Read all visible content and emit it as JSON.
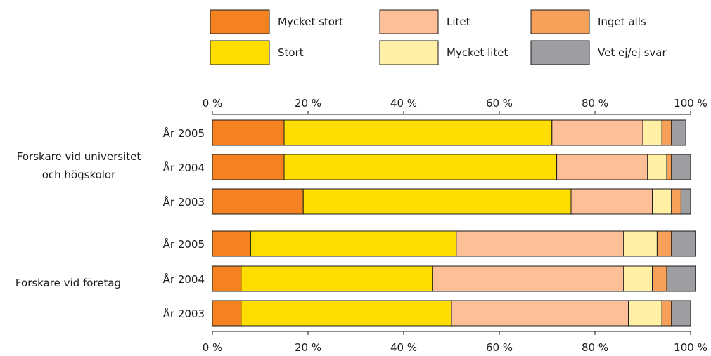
{
  "chart_data": {
    "type": "bar",
    "stacked": true,
    "orientation": "horizontal",
    "title": "",
    "xlabel": "",
    "ylabel": "",
    "xlim": [
      0,
      100
    ],
    "x_ticks": [
      "0 %",
      "20 %",
      "40 %",
      "60 %",
      "80 %",
      "100 %"
    ],
    "tick_values": [
      0,
      20,
      40,
      60,
      80,
      100
    ],
    "legend_position": "top",
    "groups": [
      {
        "lines": [
          "Forskare vid universitet",
          "och högskolor"
        ],
        "categories": [
          "År 2005",
          "År 2004",
          "År 2003"
        ]
      },
      {
        "lines": [
          "Forskare vid företag"
        ],
        "categories": [
          "År 2005",
          "År 2004",
          "År 2003"
        ]
      }
    ],
    "series": [
      {
        "name": "Mycket stort",
        "color": "#f58220",
        "values": [
          15,
          15,
          19,
          8,
          6,
          6
        ]
      },
      {
        "name": "Stort",
        "color": "#ffdd00",
        "values": [
          56,
          57,
          56,
          43,
          40,
          44
        ]
      },
      {
        "name": "Litet",
        "color": "#fdbf98",
        "values": [
          19,
          19,
          17,
          35,
          40,
          37
        ]
      },
      {
        "name": "Mycket litet",
        "color": "#fff0a6",
        "values": [
          4,
          4,
          4,
          7,
          6,
          7
        ]
      },
      {
        "name": "Inget alls",
        "color": "#f6a05a",
        "values": [
          2,
          1,
          2,
          3,
          3,
          2
        ]
      },
      {
        "name": "Vet ej/ej svar",
        "color": "#9c9ea1",
        "values": [
          3,
          4,
          2,
          5,
          6,
          4
        ]
      }
    ]
  }
}
